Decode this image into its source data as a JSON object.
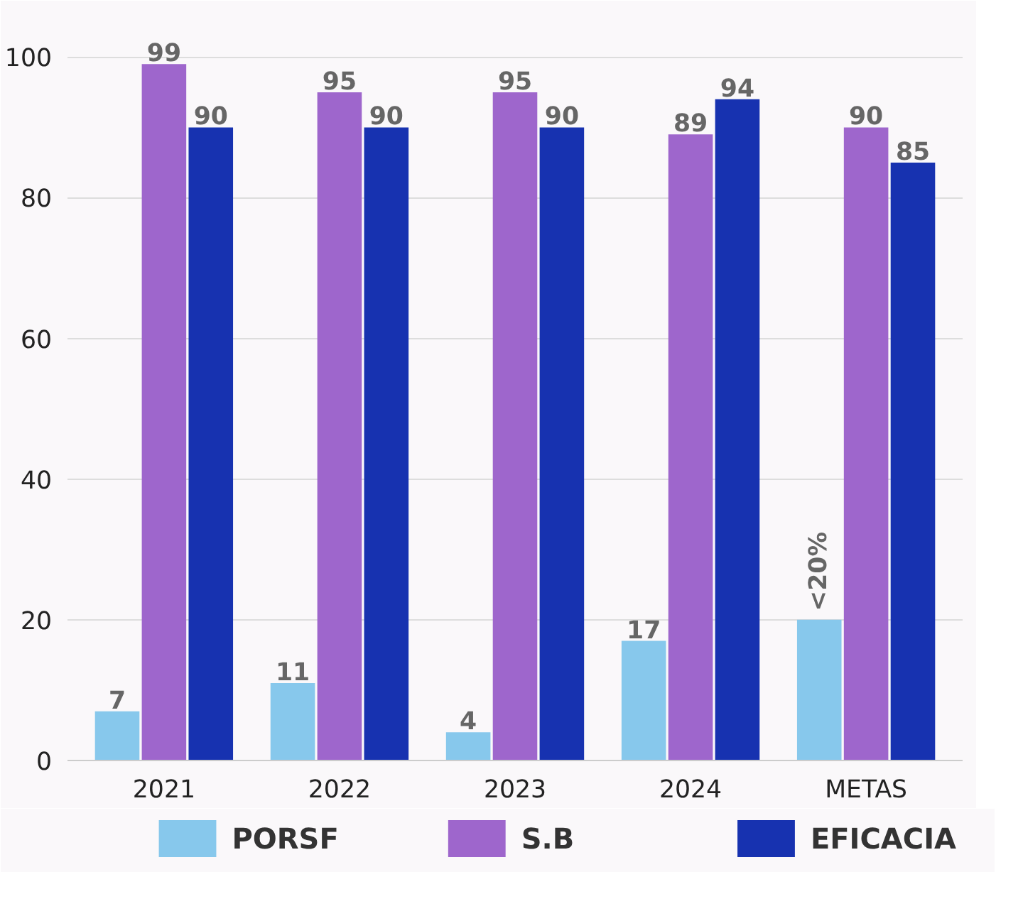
{
  "chart_data": {
    "type": "bar",
    "categories": [
      "2021",
      "2022",
      "2023",
      "2024",
      "METAS"
    ],
    "series": [
      {
        "name": "PORSF",
        "color": "#87c8ec",
        "values": [
          7,
          11,
          4,
          17,
          20
        ],
        "value_labels": [
          "7",
          "11",
          "4",
          "17",
          "<20%"
        ]
      },
      {
        "name": "S.B",
        "color": "#9e66cc",
        "values": [
          99,
          95,
          95,
          89,
          90
        ],
        "value_labels": [
          "99",
          "95",
          "95",
          "89",
          "90"
        ]
      },
      {
        "name": "EFICACIA",
        "color": "#1732b0",
        "values": [
          90,
          90,
          90,
          94,
          85
        ],
        "value_labels": [
          "90",
          "90",
          "90",
          "94",
          "85"
        ]
      }
    ],
    "ylim": [
      0,
      107
    ],
    "yticks": [
      0,
      20,
      40,
      60,
      80,
      100
    ],
    "grid": "y",
    "legend": "bottom"
  }
}
